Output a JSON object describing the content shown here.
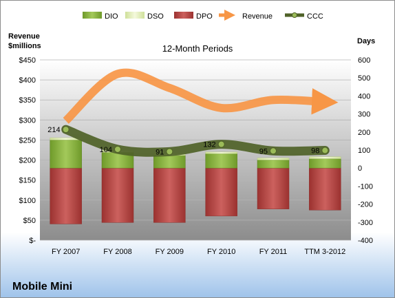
{
  "chart_data": {
    "type": "bar",
    "title": "12-Month Periods",
    "company": "Mobile Mini",
    "left_axis": {
      "label_line1": "Revenue",
      "label_line2": "$millions",
      "ylim": [
        0,
        450
      ],
      "ticks": [
        0,
        50,
        100,
        150,
        200,
        250,
        300,
        350,
        400,
        450
      ],
      "tick_labels": [
        "$-",
        "$50",
        "$100",
        "$150",
        "$200",
        "$250",
        "$300",
        "$350",
        "$400",
        "$450"
      ]
    },
    "right_axis": {
      "label": "Days",
      "ylim": [
        -400,
        600
      ],
      "ticks": [
        -400,
        -300,
        -200,
        -100,
        0,
        100,
        200,
        300,
        400,
        500,
        600
      ],
      "tick_labels": [
        "-400",
        "-300",
        "-200",
        "-100",
        "0",
        "100",
        "200",
        "300",
        "400",
        "500",
        "600"
      ]
    },
    "categories": [
      "FY 2007",
      "FY 2008",
      "FY 2009",
      "FY 2010",
      "FY 2011",
      "TTM 3-2012"
    ],
    "series": [
      {
        "name": "DIO",
        "axis": "right",
        "values": [
          156,
          87,
          70,
          80,
          45,
          52
        ],
        "color": "#8fb43c"
      },
      {
        "name": "DSO",
        "axis": "right",
        "values": [
          12,
          12,
          11,
          9,
          11,
          11
        ],
        "color": "#e8f1c2"
      },
      {
        "name": "DPO",
        "axis": "right",
        "values": [
          -310,
          -302,
          -302,
          -266,
          -227,
          -233
        ],
        "color": "#c0504d"
      },
      {
        "name": "Revenue",
        "axis": "left",
        "values": [
          298,
          415,
          380,
          330,
          350,
          345
        ],
        "color": "#f79646"
      },
      {
        "name": "CCC",
        "axis": "right",
        "values": [
          214,
          104,
          91,
          132,
          95,
          98
        ],
        "color": "#4f6228"
      }
    ],
    "ccc_labels": [
      "214",
      "104",
      "91",
      "132",
      "95",
      "98"
    ],
    "grid": true,
    "legend_position": "top"
  }
}
